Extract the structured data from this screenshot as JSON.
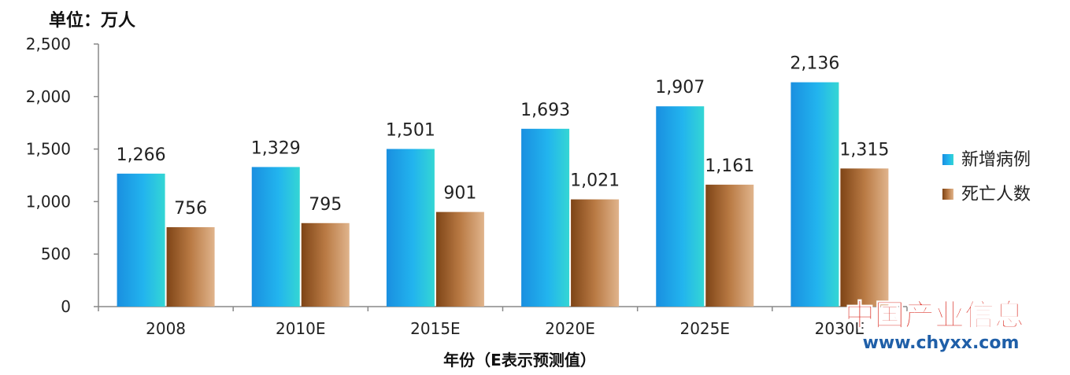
{
  "chart_data": {
    "type": "bar",
    "unit_label": "单位：万人",
    "xlabel": "年份（E表示预测值）",
    "ylabel": "",
    "ylim": [
      0,
      2500
    ],
    "yticks": [
      0,
      500,
      1000,
      1500,
      2000,
      2500
    ],
    "ytick_labels": [
      "0",
      "500",
      "1,000",
      "1,500",
      "2,000",
      "2,500"
    ],
    "categories": [
      "2008",
      "2010E",
      "2015E",
      "2020E",
      "2025E",
      "2030E"
    ],
    "series": [
      {
        "name": "新增病例",
        "values": [
          1266,
          1329,
          1501,
          1693,
          1907,
          2136
        ],
        "labels": [
          "1,266",
          "1,329",
          "1,501",
          "1,693",
          "1,907",
          "2,136"
        ],
        "color": "#1f9fe0"
      },
      {
        "name": "死亡人数",
        "values": [
          756,
          795,
          901,
          1021,
          1161,
          1315
        ],
        "labels": [
          "756",
          "795",
          "901",
          "1,021",
          "1,161",
          "1,315"
        ],
        "color": "#a0602c"
      }
    ],
    "legend": "right",
    "grid": false
  },
  "watermark": {
    "text": "中国产业信息",
    "url": "www.chyxx.com",
    "color": "#d9261c",
    "url_color": "#1f5fa8"
  }
}
